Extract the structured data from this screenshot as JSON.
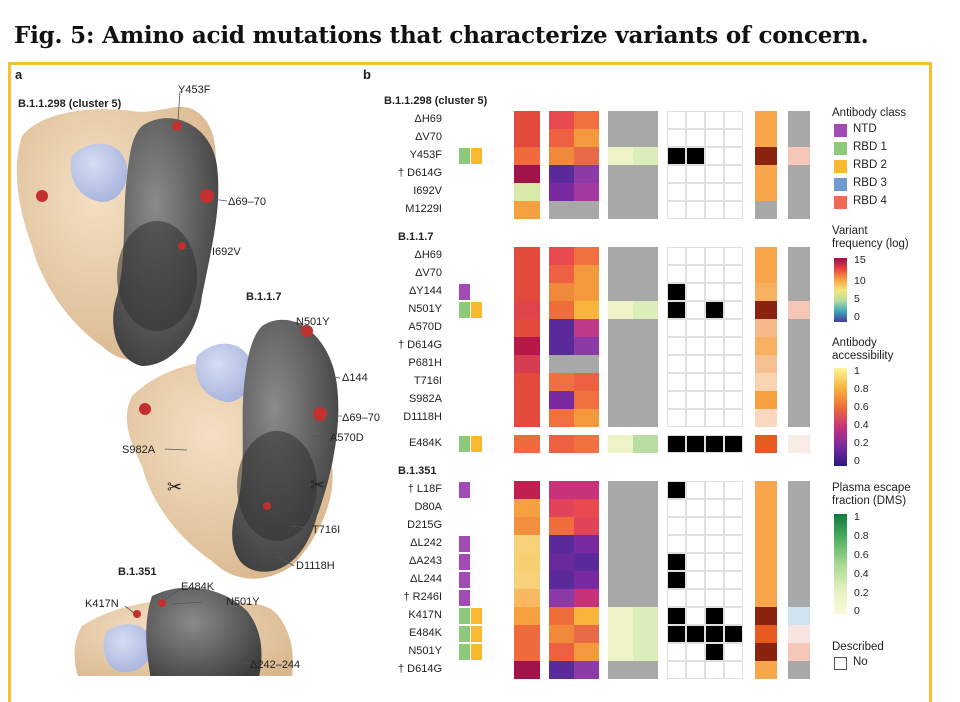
{
  "figure_title": "Fig. 5: Amino acid mutations that characterize variants of concern.",
  "panel_a": {
    "label": "a",
    "structures": [
      {
        "name": "B.1.1.298 (cluster 5)",
        "mutations": [
          "Y453F",
          "Δ69–70",
          "I692V"
        ]
      },
      {
        "name": "B.1.1.7",
        "mutations": [
          "N501Y",
          "Δ144",
          "Δ69–70",
          "A570D",
          "S982A",
          "T716I",
          "D1118H"
        ]
      },
      {
        "name": "B.1.351",
        "mutations": [
          "E484K",
          "N501Y",
          "K417N",
          "Δ242–244"
        ]
      }
    ]
  },
  "panel_b": {
    "label": "b",
    "groups": [
      {
        "name": "B.1.1.298 (cluster 5)",
        "mutations": [
          "ΔH69",
          "ΔV70",
          "Y453F",
          "† D614G",
          "I692V",
          "M1229I"
        ]
      },
      {
        "name": "B.1.1.7",
        "mutations": [
          "ΔH69",
          "ΔV70",
          "ΔY144",
          "N501Y",
          "A570D",
          "† D614G",
          "P681H",
          "T716I",
          "S982A",
          "D1118H"
        ],
        "extra": "E484K"
      },
      {
        "name": "B.1.351",
        "mutations": [
          "† L18F",
          "D80A",
          "D215G",
          "ΔL242",
          "ΔA243",
          "ΔL244",
          "† R246I",
          "K417N",
          "E484K",
          "N501Y",
          "† D614G"
        ]
      }
    ]
  },
  "legend": {
    "antibody_class": {
      "title": "Antibody class",
      "items": [
        {
          "label": "NTD",
          "color": "#a24bb5"
        },
        {
          "label": "RBD 1",
          "color": "#8cc97a"
        },
        {
          "label": "RBD 2",
          "color": "#f8b92e"
        },
        {
          "label": "RBD 3",
          "color": "#6f9bd1"
        },
        {
          "label": "RBD 4",
          "color": "#ee6a55"
        }
      ]
    },
    "variant_frequency": {
      "title_line1": "Variant",
      "title_line2": "frequency (log)",
      "ticks": [
        "15",
        "10",
        "5",
        "0"
      ]
    },
    "antibody_accessibility": {
      "title_line1": "Antibody",
      "title_line2": "accessibility",
      "ticks": [
        "1",
        "0.8",
        "0.6",
        "0.4",
        "0.2",
        "0"
      ]
    },
    "plasma_escape": {
      "title_line1": "Plasma escape",
      "title_line2": "fraction (DMS)",
      "ticks": [
        "1",
        "0.8",
        "0.6",
        "0.4",
        "0.2",
        "0"
      ]
    },
    "described": {
      "title": "Described",
      "items": [
        {
          "label": "No"
        }
      ]
    }
  }
}
